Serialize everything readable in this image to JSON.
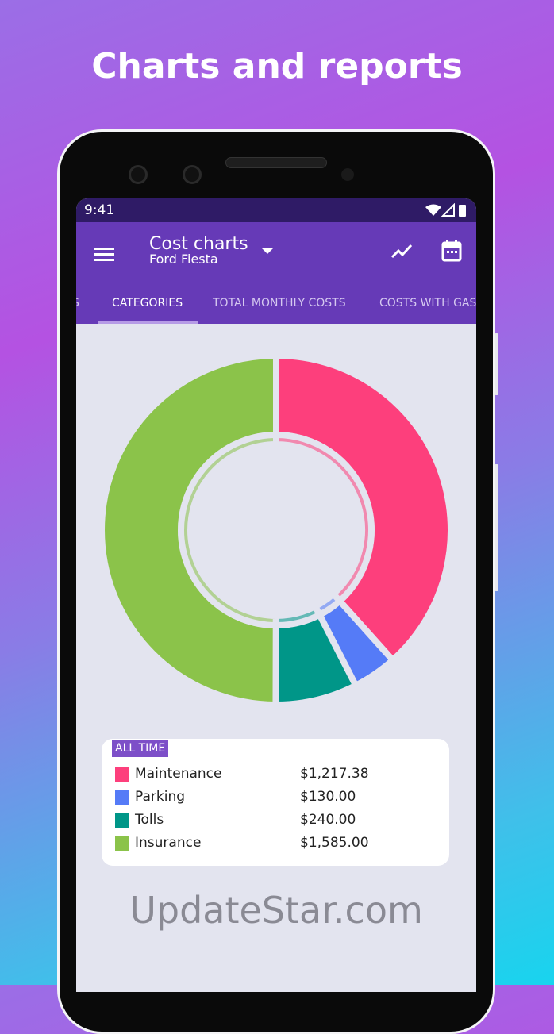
{
  "headline": "Charts and reports",
  "status": {
    "time": "9:41"
  },
  "appbar": {
    "title": "Cost charts",
    "subtitle": "Ford Fiesta"
  },
  "tabs": [
    {
      "label": "S"
    },
    {
      "label": "CATEGORIES",
      "active": true
    },
    {
      "label": "TOTAL MONTHLY COSTS"
    },
    {
      "label": "COSTS WITH GAS"
    }
  ],
  "legend": {
    "period": "ALL TIME",
    "items": [
      {
        "label": "Maintenance",
        "amount": "$1,217.38",
        "color": "#fd3f7c"
      },
      {
        "label": "Parking",
        "amount": "$130.00",
        "color": "#557bf7"
      },
      {
        "label": "Tolls",
        "amount": "$240.00",
        "color": "#009688"
      },
      {
        "label": "Insurance",
        "amount": "$1,585.00",
        "color": "#8bc34a"
      }
    ]
  },
  "chart_data": {
    "type": "pie",
    "categories": [
      "Maintenance",
      "Parking",
      "Tolls",
      "Insurance"
    ],
    "values": [
      1217.38,
      130.0,
      240.0,
      1585.0
    ],
    "colors": [
      "#fd3f7c",
      "#557bf7",
      "#009688",
      "#8bc34a"
    ],
    "donut": true
  },
  "watermark": "UpdateStar.com"
}
